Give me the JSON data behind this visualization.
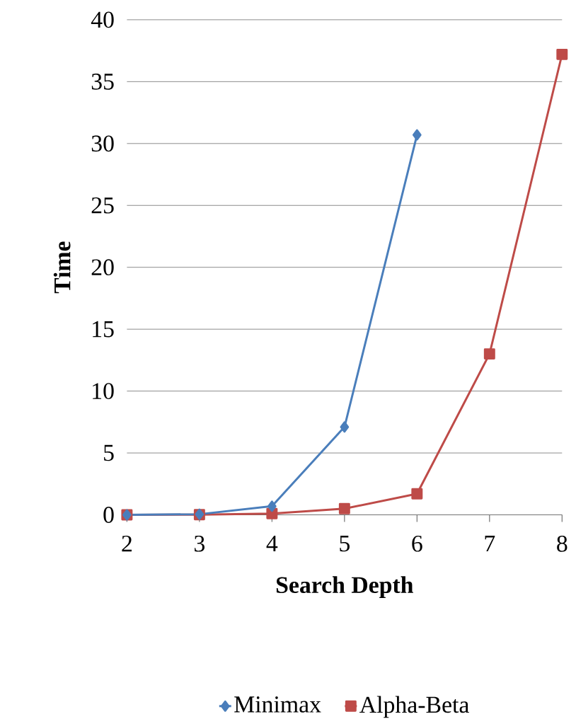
{
  "chart_data": {
    "type": "line",
    "xlabel": "Search Depth",
    "ylabel": "Time",
    "x": [
      2,
      3,
      4,
      5,
      6,
      7,
      8
    ],
    "series": [
      {
        "name": "Minimax",
        "color": "#4a7ebb",
        "marker": "diamond",
        "values": [
          0,
          0.05,
          0.7,
          7.1,
          30.7,
          null,
          null
        ]
      },
      {
        "name": "Alpha-Beta",
        "color": "#be4b48",
        "marker": "square",
        "values": [
          0,
          0.02,
          0.1,
          0.5,
          1.7,
          13,
          37.2
        ]
      }
    ],
    "xlim": [
      2,
      8
    ],
    "xticks": [
      2,
      3,
      4,
      5,
      6,
      7,
      8
    ],
    "ylim": [
      0,
      40
    ],
    "yticks": [
      0,
      5,
      10,
      15,
      20,
      25,
      30,
      35,
      40
    ],
    "grid": "y",
    "legend": "bottom",
    "line_style": "solid"
  }
}
